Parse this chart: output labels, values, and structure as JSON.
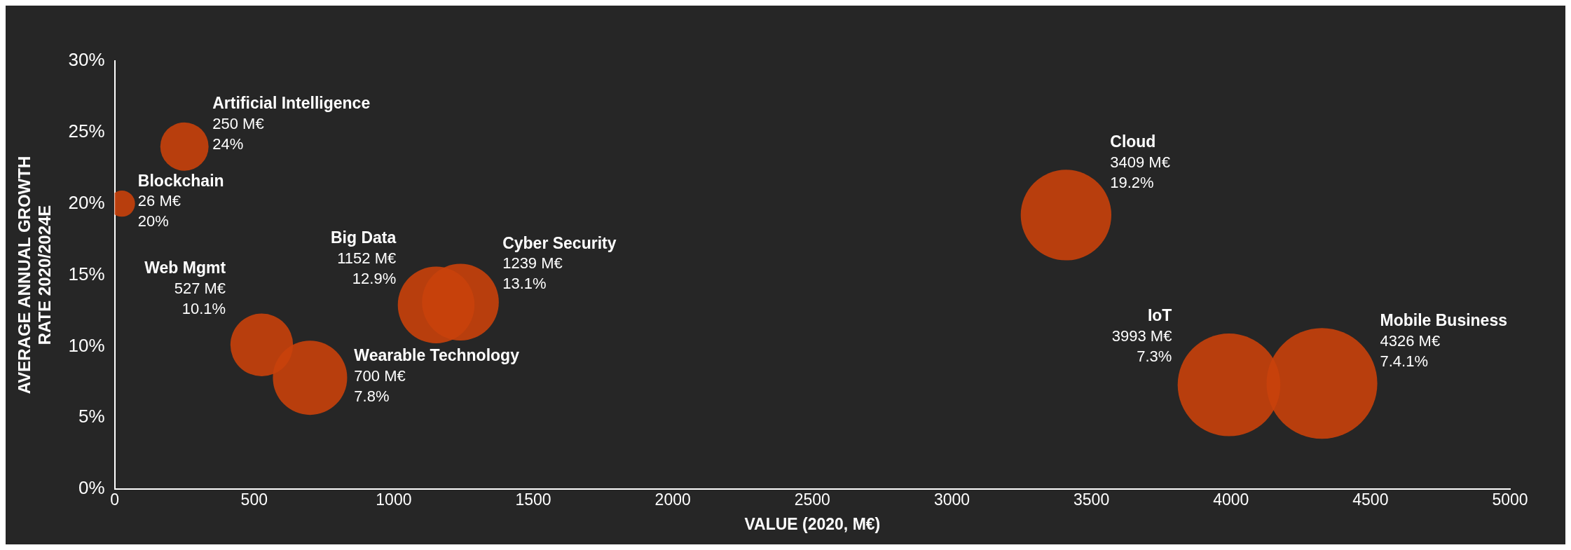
{
  "chart_data": {
    "type": "bubble",
    "xlabel": "VALUE (2020, M€)",
    "ylabel": "AVERAGE ANNUAL GROWTH RATE 2020/2024E",
    "series": [
      {
        "name": "Artificial Intelligence",
        "color": "#c9410b",
        "x": [
          250
        ],
        "values": [
          24
        ],
        "sizes": [
          0.19
        ],
        "value_labels": [
          "250 M€\n24%"
        ]
      },
      {
        "name": "Blockchain",
        "color": "#c9410b",
        "x": [
          26
        ],
        "values": [
          20
        ],
        "sizes": [
          0.056
        ],
        "value_labels": [
          "26 M€\n20%"
        ]
      },
      {
        "name": "Big Data",
        "color": "#c9410b",
        "x": [
          1152
        ],
        "values": [
          12.9
        ],
        "sizes": [
          0.48
        ],
        "value_labels": [
          "1152 M€\n12.9%"
        ]
      },
      {
        "name": "Cyber Security",
        "color": "#c9410b",
        "x": [
          1239
        ],
        "values": [
          13.1
        ],
        "sizes": [
          0.48
        ],
        "value_labels": [
          "1239 M€\n13.1%"
        ]
      },
      {
        "name": "Web Mgmt",
        "color": "#c9410b",
        "x": [
          527
        ],
        "values": [
          10.1
        ],
        "sizes": [
          0.32
        ],
        "value_labels": [
          "527 M€\n10.1%"
        ]
      },
      {
        "name": "Wearable Technology",
        "color": "#c9410b",
        "x": [
          700
        ],
        "values": [
          7.8
        ],
        "sizes": [
          0.45
        ],
        "value_labels": [
          "700 M€\n7.8%"
        ]
      },
      {
        "name": "Cloud",
        "color": "#c9410b",
        "x": [
          3409
        ],
        "values": [
          19.2
        ],
        "sizes": [
          0.67
        ],
        "value_labels": [
          "3409 M€\n19.2%"
        ]
      },
      {
        "name": "IoT",
        "color": "#c9410b",
        "x": [
          3993
        ],
        "values": [
          7.3
        ],
        "sizes": [
          0.86
        ],
        "value_labels": [
          "3993 M€\n7.3%"
        ]
      },
      {
        "name": "Mobile Business",
        "color": "#c9410b",
        "x": [
          4326
        ],
        "values": [
          7.4
        ],
        "sizes": [
          1
        ],
        "value_labels": [
          "4326 M€\n7.4.1%"
        ]
      }
    ],
    "xlim": [
      0,
      5000
    ],
    "xticks": [
      0,
      500,
      1000,
      1500,
      2000,
      2500,
      3000,
      3500,
      4000,
      4500,
      5000
    ],
    "ylim": [
      0,
      30
    ],
    "yticks": [
      {
        "value": 0,
        "label": "0%"
      },
      {
        "value": 5,
        "label": "5%"
      },
      {
        "value": 10,
        "label": "10%"
      },
      {
        "value": 15,
        "label": "15%"
      },
      {
        "value": 20,
        "label": "20%"
      },
      {
        "value": 25,
        "label": "25%"
      },
      {
        "value": 30,
        "label": "30%"
      }
    ],
    "grid": false,
    "legend": false,
    "marker": "circle"
  }
}
